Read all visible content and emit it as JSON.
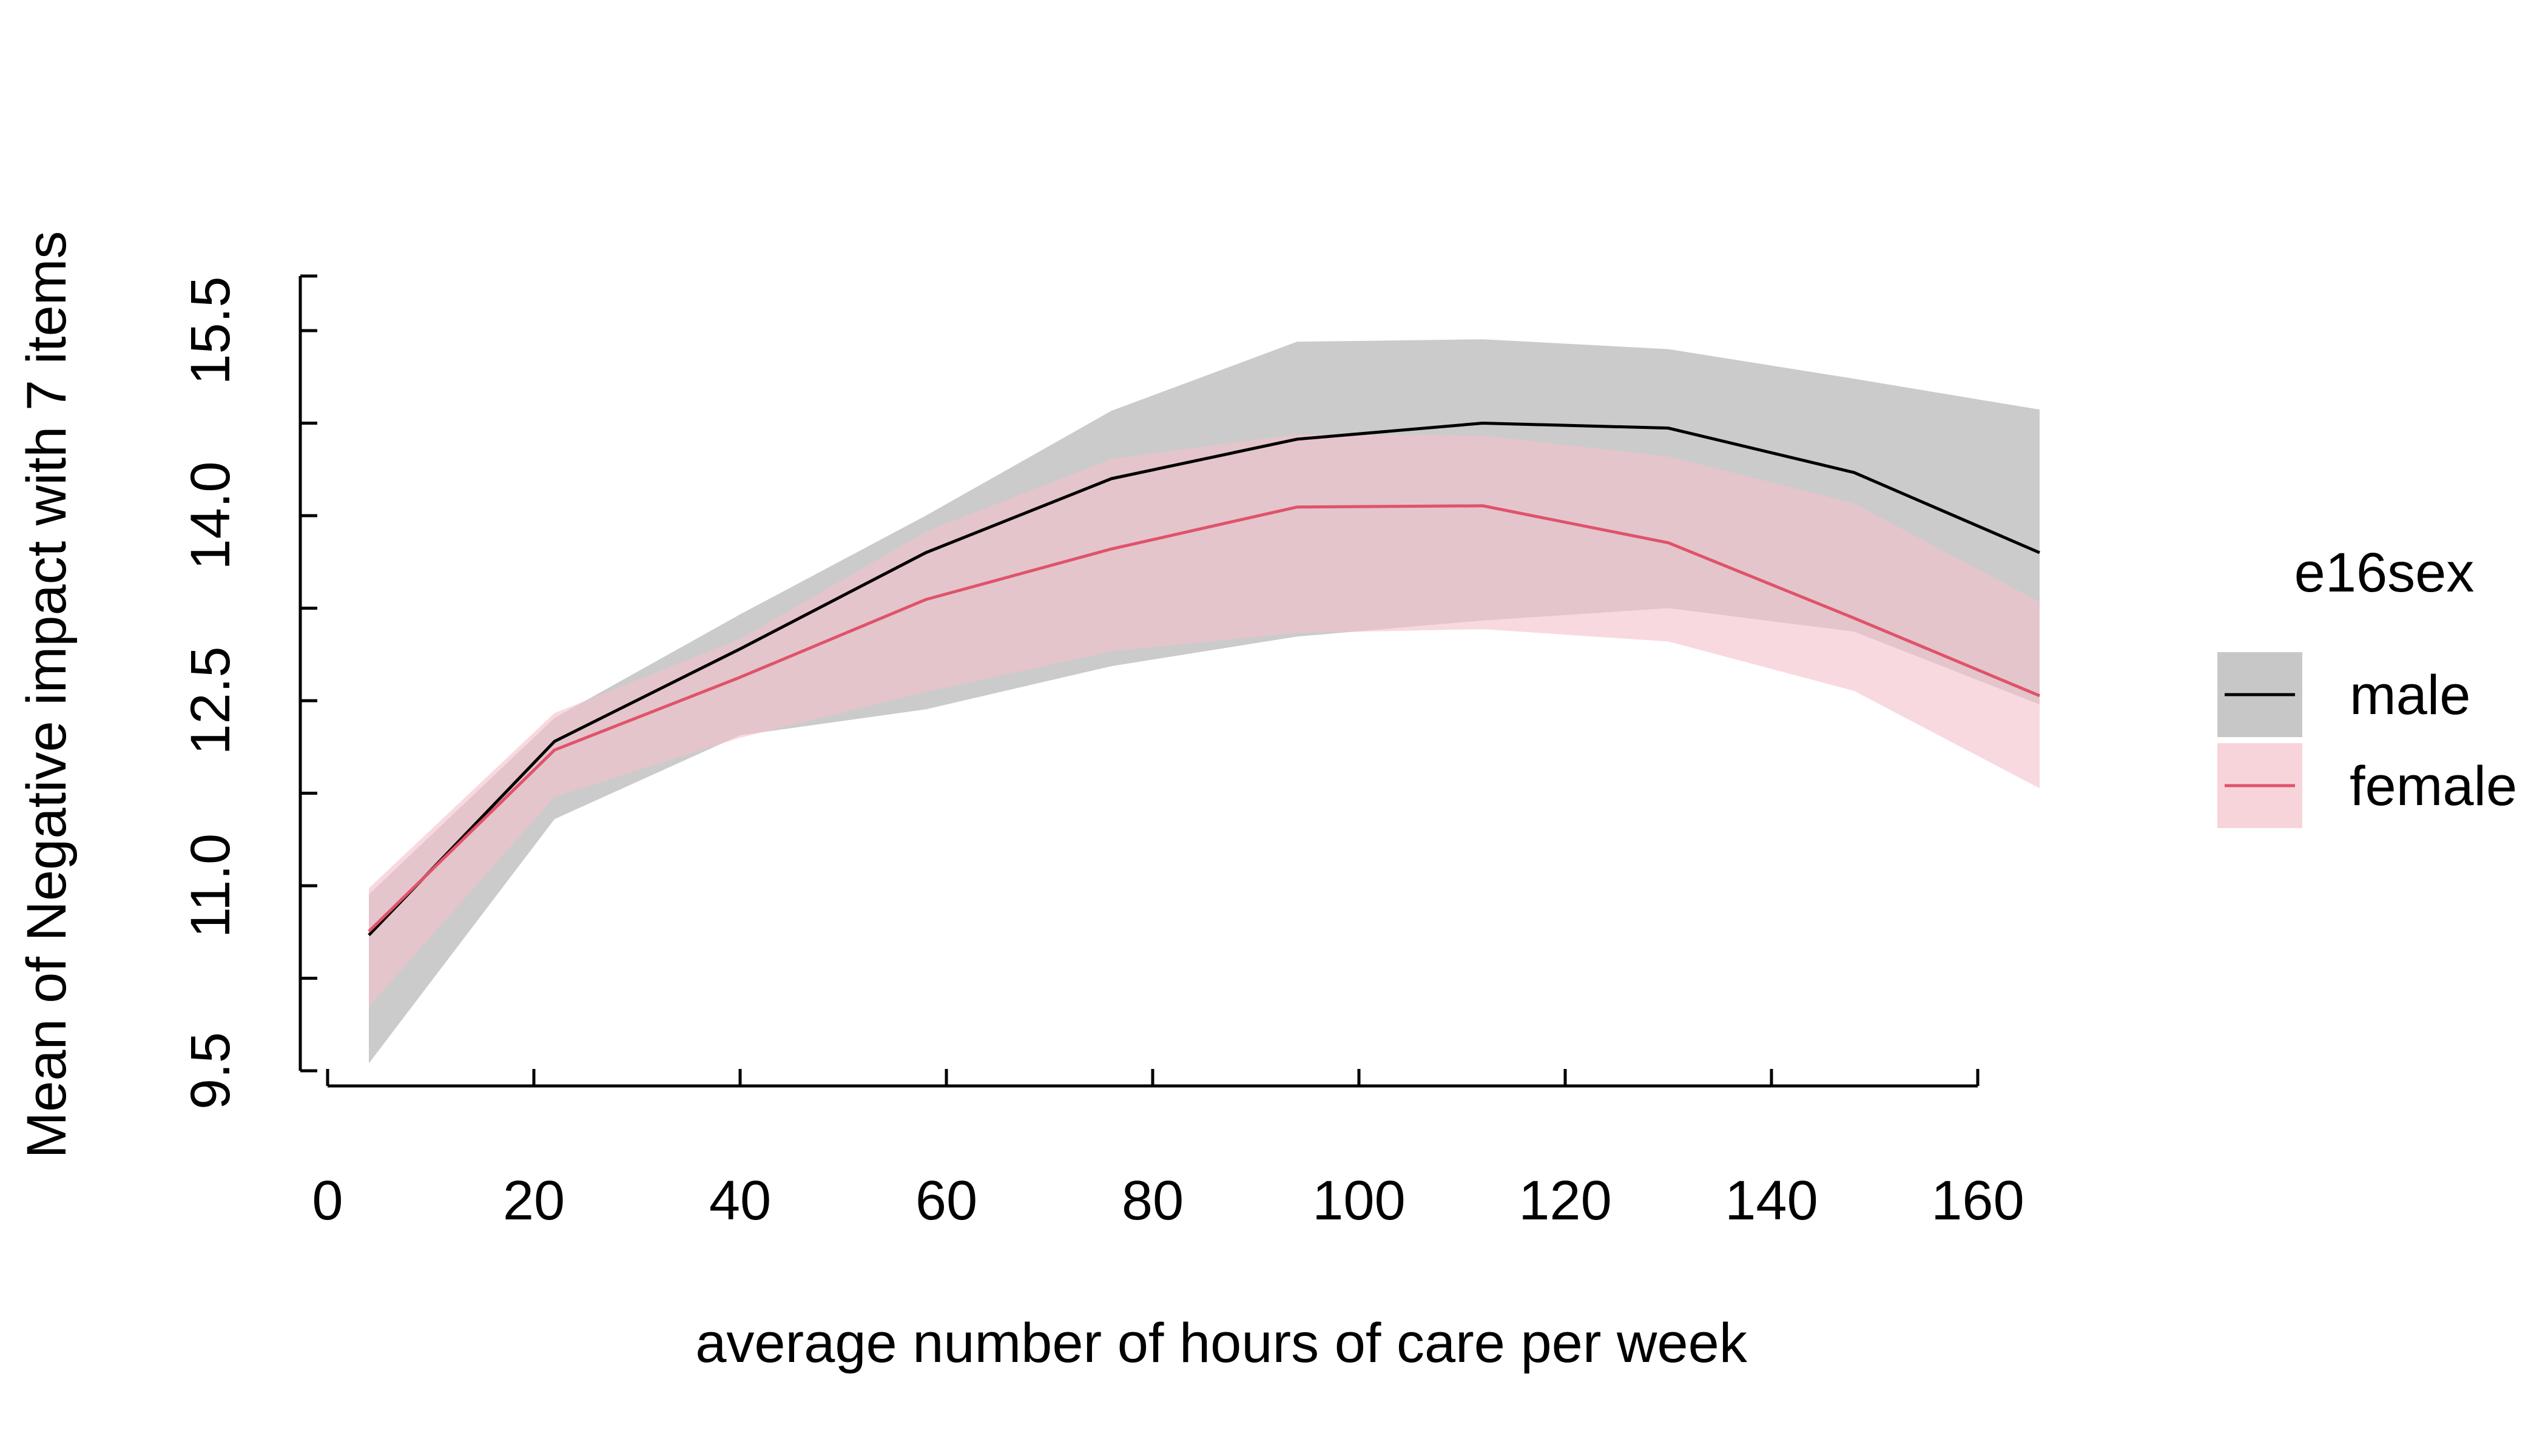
{
  "chart_data": {
    "type": "line",
    "title": "",
    "xlabel": "average number of hours of care per week",
    "ylabel": "Mean of Negative impact with 7 items",
    "xlim": [
      0,
      160
    ],
    "ylim": [
      9.5,
      15.5
    ],
    "x_ticks": [
      0,
      20,
      40,
      60,
      80,
      100,
      120,
      140,
      160
    ],
    "x_tick_labels": [
      "0",
      "20",
      "40",
      "60",
      "80",
      "100",
      "120",
      "140",
      "160"
    ],
    "y_ticks": [
      9.5,
      11.0,
      12.5,
      14.0,
      15.5
    ],
    "y_tick_labels": [
      "9.5",
      "11.0",
      "12.5",
      "14.0",
      "15.5"
    ],
    "y_minor_ticks": [
      10.25,
      11.75,
      13.25,
      14.75
    ],
    "grid": false,
    "legend": {
      "title": "e16sex",
      "position": "right",
      "items": [
        "male",
        "female"
      ]
    },
    "x": [
      4,
      22,
      40,
      58,
      76,
      94,
      112,
      130,
      148,
      166
    ],
    "series": [
      {
        "name": "male",
        "color": "#000000",
        "band_color": "#bdbdbd",
        "values": [
          10.6,
          12.17,
          12.92,
          13.7,
          14.3,
          14.62,
          14.75,
          14.71,
          14.35,
          13.7
        ],
        "lower": [
          9.56,
          11.54,
          12.22,
          12.43,
          12.78,
          13.02,
          13.15,
          13.25,
          13.06,
          12.47
        ],
        "upper": [
          10.93,
          12.36,
          13.2,
          14.0,
          14.85,
          15.41,
          15.43,
          15.35,
          15.11,
          14.86
        ]
      },
      {
        "name": "female",
        "color": "#df536b",
        "band_color": "#f4c2cb",
        "values": [
          10.63,
          12.1,
          12.69,
          13.32,
          13.73,
          14.07,
          14.08,
          13.78,
          13.17,
          12.54
        ],
        "lower": [
          10.02,
          11.72,
          12.2,
          12.57,
          12.9,
          13.05,
          13.08,
          12.98,
          12.58,
          11.79
        ],
        "upper": [
          10.98,
          12.4,
          13.0,
          13.87,
          14.46,
          14.66,
          14.65,
          14.48,
          14.1,
          13.3
        ]
      }
    ]
  }
}
